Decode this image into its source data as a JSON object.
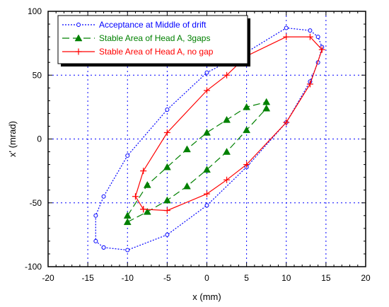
{
  "chart_data": {
    "type": "line",
    "xlabel": "x (mm)",
    "ylabel": "x' (mrad)",
    "xlim": [
      -20,
      20
    ],
    "ylim": [
      -100,
      100
    ],
    "xticks": [
      -20,
      -15,
      -10,
      -5,
      0,
      5,
      10,
      15,
      20
    ],
    "yticks": [
      -100,
      -50,
      0,
      50,
      100
    ],
    "xtick_labels": [
      "-20",
      "-15",
      "-10",
      "-5",
      "0",
      "5",
      "10",
      "15",
      "20"
    ],
    "ytick_labels": [
      "-100",
      "-50",
      "0",
      "50",
      "100"
    ],
    "grid": true,
    "legend_position": "top-left",
    "series": [
      {
        "name": "Acceptance at Middle of drift",
        "color": "#0000ff",
        "line": "dotted",
        "marker": "circle",
        "points": [
          [
            -13,
            -85
          ],
          [
            -10,
            -87
          ],
          [
            -5,
            -75
          ],
          [
            0,
            -52
          ],
          [
            5,
            -22
          ],
          [
            10,
            13
          ],
          [
            13,
            45
          ],
          [
            14,
            60
          ],
          [
            14.5,
            72
          ],
          [
            14,
            80
          ],
          [
            13,
            85
          ],
          [
            10,
            87
          ],
          [
            5,
            68
          ],
          [
            0,
            52
          ],
          [
            -5,
            23
          ],
          [
            -10,
            -13
          ],
          [
            -13,
            -45
          ],
          [
            -14,
            -60
          ],
          [
            -14,
            -80
          ],
          [
            -13,
            -85
          ]
        ]
      },
      {
        "name": "Stable Area of Head A, 3gaps",
        "color": "#008000",
        "line": "dashed",
        "marker": "triangle",
        "segments": [
          [
            [
              -10,
              -60
            ],
            [
              -7.5,
              -36
            ],
            [
              -5,
              -22
            ],
            [
              -2.5,
              -8
            ],
            [
              0,
              5
            ],
            [
              2.5,
              15
            ],
            [
              5,
              25
            ],
            [
              7.5,
              29
            ]
          ],
          [
            [
              -10,
              -65
            ],
            [
              -7.5,
              -57
            ],
            [
              -5,
              -48
            ],
            [
              -2.5,
              -37
            ],
            [
              0,
              -24
            ],
            [
              2.5,
              -10
            ],
            [
              5,
              7
            ],
            [
              7.5,
              24
            ]
          ]
        ]
      },
      {
        "name": "Stable Area of Head A, no gap",
        "color": "#ff0000",
        "line": "solid",
        "marker": "plus",
        "points": [
          [
            -8,
            -55
          ],
          [
            -5,
            -56
          ],
          [
            0,
            -43
          ],
          [
            2.5,
            -32
          ],
          [
            5,
            -20
          ],
          [
            10,
            13
          ],
          [
            13,
            43
          ],
          [
            14.5,
            70
          ],
          [
            13,
            80
          ],
          [
            10,
            80
          ],
          [
            5,
            65
          ],
          [
            2.5,
            50
          ],
          [
            0,
            38
          ],
          [
            -5,
            5
          ],
          [
            -8,
            -25
          ],
          [
            -9,
            -45
          ],
          [
            -8,
            -55
          ]
        ]
      }
    ]
  }
}
